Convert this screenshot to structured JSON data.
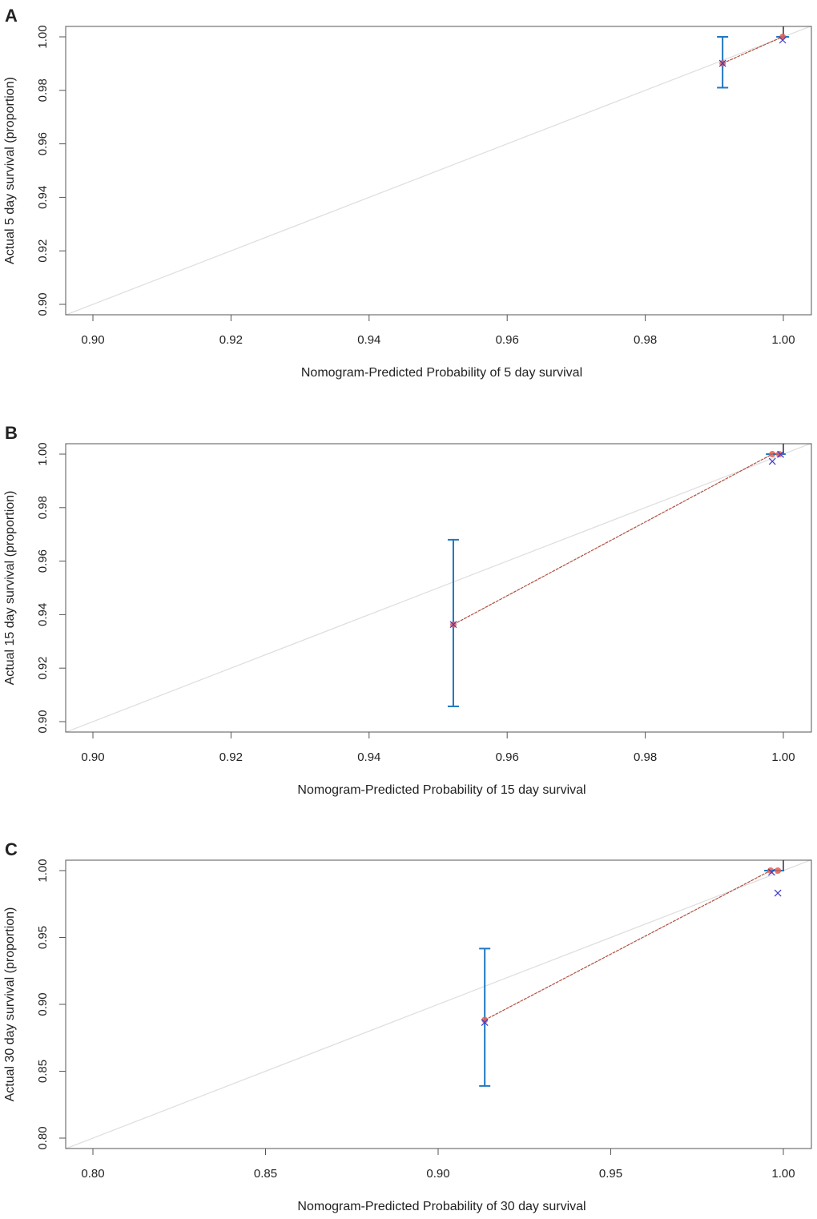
{
  "colors": {
    "errorbar": "#1f78c1",
    "observed": "#e06050",
    "corrected": "#3a3ad0",
    "fit_line": "#b05040",
    "ideal_line": "#dddddd",
    "axis": "#555555"
  },
  "chart_data": [
    {
      "type": "scatter",
      "panel_label": "A",
      "xlabel": "Nomogram-Predicted Probability of 5 day survival",
      "ylabel": "Actual 5 day survival (proportion)",
      "xlim": [
        0.896,
        1.004
      ],
      "ylim": [
        0.896,
        1.004
      ],
      "xticks": [
        "0.90",
        "0.92",
        "0.94",
        "0.96",
        "0.98",
        "1.00"
      ],
      "yticks": [
        "0.90",
        "0.92",
        "0.94",
        "0.96",
        "0.98",
        "1.00"
      ],
      "tick_min": 0.9,
      "tick_step": 0.02,
      "observed": [
        {
          "x": 0.9912,
          "y": 0.9901,
          "lower": 0.981,
          "upper": 1.0
        },
        {
          "x": 0.9999,
          "y": 1.0
        }
      ],
      "corrected": [
        {
          "x": 0.9912,
          "y": 0.9901
        },
        {
          "x": 0.9999,
          "y": 0.9988
        }
      ],
      "grid": false
    },
    {
      "type": "scatter",
      "panel_label": "B",
      "xlabel": "Nomogram-Predicted Probability of 15 day survival",
      "ylabel": "Actual 15 day survival (proportion)",
      "xlim": [
        0.896,
        1.004
      ],
      "ylim": [
        0.896,
        1.004
      ],
      "xticks": [
        "0.90",
        "0.92",
        "0.94",
        "0.96",
        "0.98",
        "1.00"
      ],
      "yticks": [
        "0.90",
        "0.92",
        "0.94",
        "0.96",
        "0.98",
        "1.00"
      ],
      "tick_min": 0.9,
      "tick_step": 0.02,
      "observed": [
        {
          "x": 0.9522,
          "y": 0.9363,
          "lower": 0.9057,
          "upper": 0.968
        },
        {
          "x": 0.9984,
          "y": 1.0
        },
        {
          "x": 0.9994,
          "y": 1.0
        }
      ],
      "corrected": [
        {
          "x": 0.9522,
          "y": 0.9363
        },
        {
          "x": 0.9984,
          "y": 0.9973
        },
        {
          "x": 0.9996,
          "y": 0.9999
        }
      ],
      "grid": false
    },
    {
      "type": "scatter",
      "panel_label": "C",
      "xlabel": "Nomogram-Predicted Probability of 30 day survival",
      "ylabel": "Actual 30 day survival (proportion)",
      "xlim": [
        0.792,
        1.008
      ],
      "ylim": [
        0.792,
        1.008
      ],
      "xticks": [
        "0.80",
        "0.85",
        "0.90",
        "0.95",
        "1.00"
      ],
      "yticks": [
        "0.80",
        "0.85",
        "0.90",
        "0.95",
        "1.00"
      ],
      "tick_min": 0.8,
      "tick_step": 0.05,
      "observed": [
        {
          "x": 0.9135,
          "y": 0.8883,
          "lower": 0.839,
          "upper": 0.9417
        },
        {
          "x": 0.9963,
          "y": 1.0
        },
        {
          "x": 0.9984,
          "y": 1.0
        }
      ],
      "corrected": [
        {
          "x": 0.9135,
          "y": 0.8865
        },
        {
          "x": 0.9966,
          "y": 0.9988
        },
        {
          "x": 0.9984,
          "y": 0.9832
        }
      ],
      "grid": false
    }
  ]
}
